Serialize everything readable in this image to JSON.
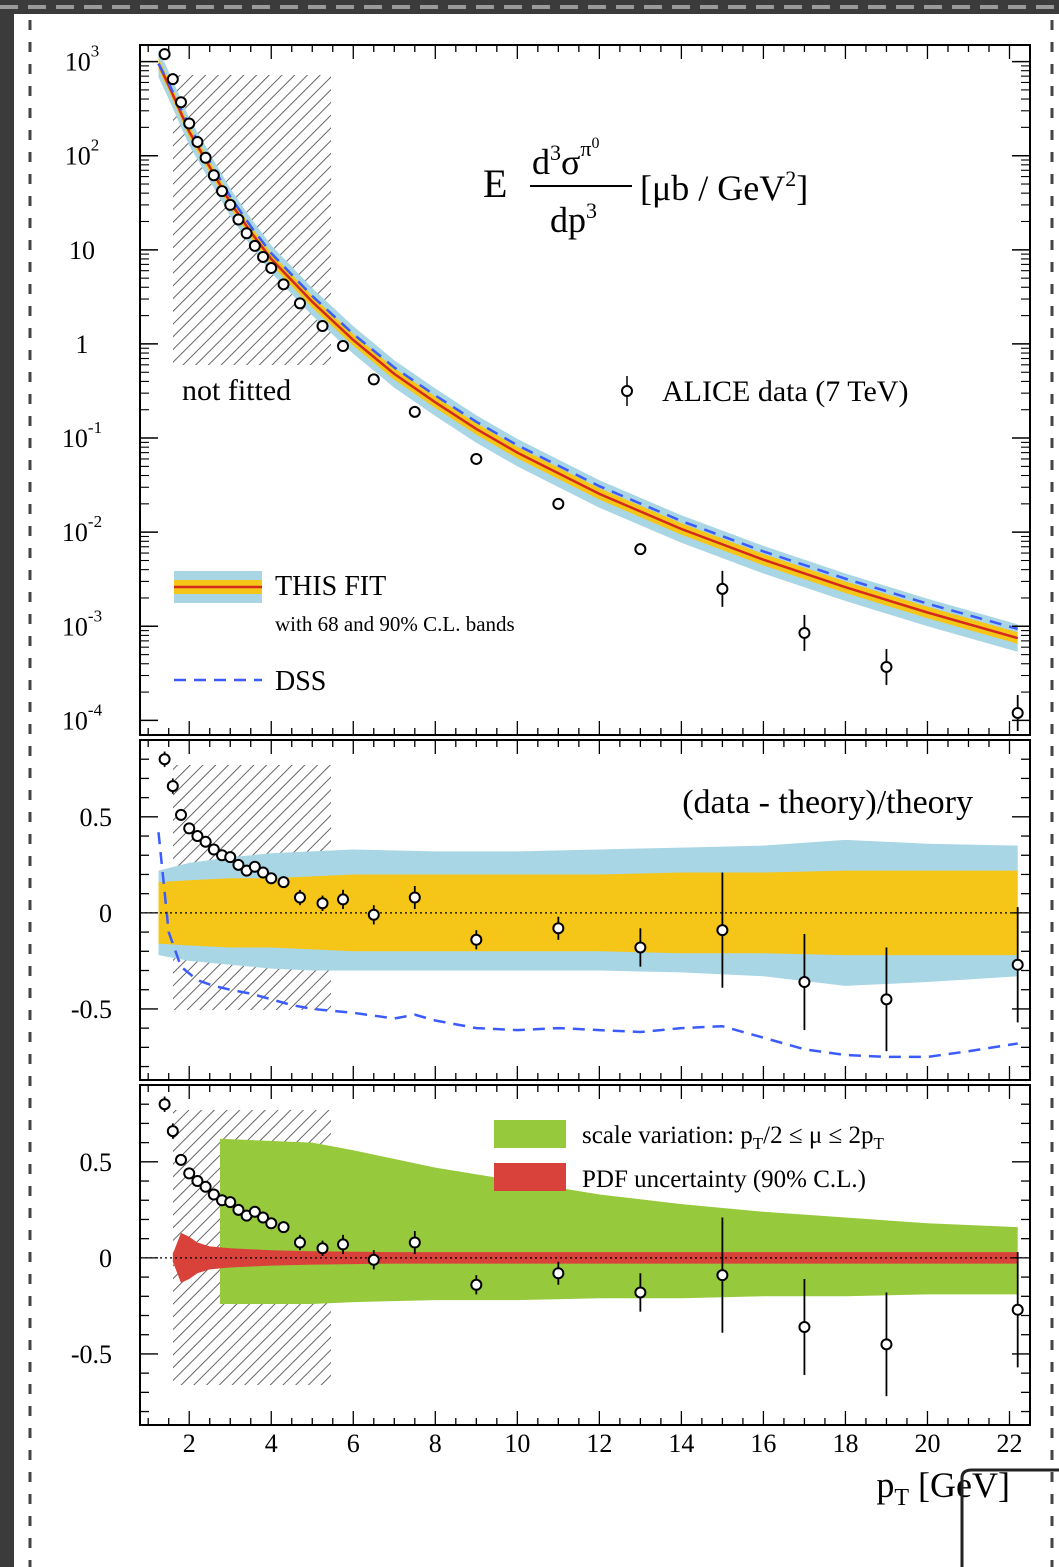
{
  "chart_data": [
    {
      "type": "scatter",
      "panel": "cross-section",
      "title_formula": {
        "E": "E",
        "num": "d",
        "num_sup": "3",
        "sigma": "σ",
        "pi_sup": "π",
        "pi_sup2": "0",
        "den": "dp",
        "den_sup": "3",
        "units": "[μb / GeV",
        "units_sup": "2",
        "units_close": "]"
      },
      "yscale": "log",
      "xlim": [
        0.8,
        22.5
      ],
      "ylim": [
        7e-05,
        1500
      ],
      "y_ticks": [
        {
          "value": 1000,
          "base": "10",
          "exp": "3"
        },
        {
          "value": 100,
          "base": "10",
          "exp": "2"
        },
        {
          "value": 10,
          "base": "10",
          "exp": ""
        },
        {
          "value": 1,
          "base": "1",
          "exp": ""
        },
        {
          "value": 0.1,
          "base": "10",
          "exp": "-1"
        },
        {
          "value": 0.01,
          "base": "10",
          "exp": "-2"
        },
        {
          "value": 0.001,
          "base": "10",
          "exp": "-3"
        },
        {
          "value": 0.0001,
          "base": "10",
          "exp": "-4"
        }
      ],
      "not_fitted_region": {
        "x": [
          1.0,
          5.0
        ],
        "label": "not fitted"
      },
      "data_label": "ALICE data (7 TeV)",
      "legend_fit": "THIS FIT",
      "legend_fit_sub": "with 68 and 90% C.L. bands",
      "legend_dss": "DSS",
      "data": [
        {
          "x": 1.4,
          "y": 1200
        },
        {
          "x": 1.6,
          "y": 650
        },
        {
          "x": 1.8,
          "y": 370
        },
        {
          "x": 2.0,
          "y": 220
        },
        {
          "x": 2.2,
          "y": 140
        },
        {
          "x": 2.4,
          "y": 95
        },
        {
          "x": 2.6,
          "y": 62
        },
        {
          "x": 2.8,
          "y": 42
        },
        {
          "x": 3.0,
          "y": 30
        },
        {
          "x": 3.2,
          "y": 21
        },
        {
          "x": 3.4,
          "y": 15
        },
        {
          "x": 3.6,
          "y": 11
        },
        {
          "x": 3.8,
          "y": 8.4
        },
        {
          "x": 4.0,
          "y": 6.4
        },
        {
          "x": 4.3,
          "y": 4.3
        },
        {
          "x": 4.7,
          "y": 2.7
        },
        {
          "x": 5.25,
          "y": 1.55
        },
        {
          "x": 5.75,
          "y": 0.95
        },
        {
          "x": 6.5,
          "y": 0.42
        },
        {
          "x": 7.5,
          "y": 0.19
        },
        {
          "x": 9.0,
          "y": 0.06
        },
        {
          "x": 11.0,
          "y": 0.02
        },
        {
          "x": 13.0,
          "y": 0.0066
        },
        {
          "x": 15.0,
          "y": 0.0025
        },
        {
          "x": 17.0,
          "y": 0.00085
        },
        {
          "x": 19.0,
          "y": 0.00037
        },
        {
          "x": 22.2,
          "y": 0.00012
        }
      ],
      "fit_curve": {
        "x": [
          1.25,
          1.5,
          2.0,
          2.5,
          3.0,
          3.5,
          4.0,
          5.0,
          6.0,
          7.0,
          8.0,
          9.0,
          10.0,
          12.0,
          14.0,
          16.0,
          18.0,
          20.0,
          22.2
        ],
        "y": [
          950,
          560,
          180,
          76,
          32,
          15.5,
          8.0,
          2.8,
          1.1,
          0.48,
          0.24,
          0.125,
          0.07,
          0.0255,
          0.0108,
          0.0051,
          0.0026,
          0.0014,
          0.00075
        ]
      },
      "band68_factor": 1.15,
      "band90_factor": 1.4,
      "dss_ratio": [
        {
          "x": 1.25,
          "r": 1.0
        },
        {
          "x": 2.0,
          "r": 1.15
        },
        {
          "x": 5.0,
          "r": 1.15
        },
        {
          "x": 10.0,
          "r": 1.2
        },
        {
          "x": 22.2,
          "r": 1.25
        }
      ]
    },
    {
      "type": "scatter",
      "panel": "ratio",
      "label": "(data -  theory)/theory",
      "ylim": [
        -0.87,
        0.9
      ],
      "y_ticks": [
        {
          "value": 0.5,
          "label": "0.5"
        },
        {
          "value": 0,
          "label": "0"
        },
        {
          "value": -0.5,
          "label": "-0.5"
        }
      ],
      "data": [
        {
          "x": 1.4,
          "y": 0.8,
          "err": 0.04
        },
        {
          "x": 1.6,
          "y": 0.66,
          "err": 0.04
        },
        {
          "x": 1.8,
          "y": 0.51,
          "err": 0.03
        },
        {
          "x": 2.0,
          "y": 0.44,
          "err": 0.03
        },
        {
          "x": 2.2,
          "y": 0.4,
          "err": 0.03
        },
        {
          "x": 2.4,
          "y": 0.37,
          "err": 0.03
        },
        {
          "x": 2.6,
          "y": 0.33,
          "err": 0.03
        },
        {
          "x": 2.8,
          "y": 0.3,
          "err": 0.03
        },
        {
          "x": 3.0,
          "y": 0.29,
          "err": 0.03
        },
        {
          "x": 3.2,
          "y": 0.25,
          "err": 0.03
        },
        {
          "x": 3.4,
          "y": 0.22,
          "err": 0.03
        },
        {
          "x": 3.6,
          "y": 0.24,
          "err": 0.03
        },
        {
          "x": 3.8,
          "y": 0.21,
          "err": 0.03
        },
        {
          "x": 4.0,
          "y": 0.18,
          "err": 0.03
        },
        {
          "x": 4.3,
          "y": 0.16,
          "err": 0.03
        },
        {
          "x": 4.7,
          "y": 0.08,
          "err": 0.04
        },
        {
          "x": 5.25,
          "y": 0.05,
          "err": 0.04
        },
        {
          "x": 5.75,
          "y": 0.07,
          "err": 0.05
        },
        {
          "x": 6.5,
          "y": -0.01,
          "err": 0.05
        },
        {
          "x": 7.5,
          "y": 0.08,
          "err": 0.06
        },
        {
          "x": 9.0,
          "y": -0.14,
          "err": 0.05
        },
        {
          "x": 11.0,
          "y": -0.08,
          "err": 0.06
        },
        {
          "x": 13.0,
          "y": -0.18,
          "err": 0.1
        },
        {
          "x": 15.0,
          "y": -0.09,
          "err": 0.3
        },
        {
          "x": 17.0,
          "y": -0.36,
          "err": 0.25
        },
        {
          "x": 19.0,
          "y": -0.45,
          "err": 0.27
        },
        {
          "x": 22.2,
          "y": -0.27,
          "err": 0.3
        }
      ],
      "band68": {
        "x": [
          1.25,
          2.0,
          3.0,
          4.0,
          5.0,
          6.0,
          8.0,
          10.0,
          12.0,
          14.0,
          16.0,
          18.0,
          20.0,
          22.2
        ],
        "up": [
          0.16,
          0.17,
          0.18,
          0.18,
          0.19,
          0.2,
          0.2,
          0.2,
          0.2,
          0.21,
          0.21,
          0.22,
          0.22,
          0.22
        ],
        "lo": [
          -0.16,
          -0.17,
          -0.18,
          -0.18,
          -0.19,
          -0.2,
          -0.2,
          -0.2,
          -0.2,
          -0.21,
          -0.21,
          -0.22,
          -0.22,
          -0.22
        ]
      },
      "band90": {
        "x": [
          1.25,
          2.0,
          3.0,
          4.0,
          5.0,
          6.0,
          8.0,
          10.0,
          12.0,
          14.0,
          16.0,
          18.0,
          20.0,
          22.2
        ],
        "up": [
          0.22,
          0.26,
          0.29,
          0.31,
          0.32,
          0.33,
          0.32,
          0.32,
          0.33,
          0.34,
          0.35,
          0.38,
          0.36,
          0.35
        ],
        "lo": [
          -0.22,
          -0.25,
          -0.27,
          -0.29,
          -0.3,
          -0.3,
          -0.3,
          -0.3,
          -0.3,
          -0.31,
          -0.33,
          -0.38,
          -0.36,
          -0.33
        ]
      },
      "dss": {
        "x": [
          1.25,
          1.5,
          1.8,
          2.2,
          2.6,
          3.0,
          3.5,
          4.0,
          4.5,
          5.0,
          6.0,
          7.0,
          7.5,
          8.0,
          9.0,
          10.0,
          11.0,
          12.0,
          13.0,
          14.0,
          15.0,
          16.0,
          17.0,
          18.0,
          19.0,
          20.0,
          21.0,
          22.2
        ],
        "y": [
          0.42,
          -0.1,
          -0.28,
          -0.35,
          -0.38,
          -0.4,
          -0.42,
          -0.45,
          -0.48,
          -0.5,
          -0.52,
          -0.55,
          -0.53,
          -0.56,
          -0.6,
          -0.61,
          -0.6,
          -0.61,
          -0.62,
          -0.6,
          -0.59,
          -0.65,
          -0.71,
          -0.74,
          -0.75,
          -0.75,
          -0.72,
          -0.68
        ]
      }
    },
    {
      "type": "scatter",
      "panel": "uncertainty",
      "ylim": [
        -0.87,
        0.9
      ],
      "y_ticks": [
        {
          "value": 0.5,
          "label": "0.5"
        },
        {
          "value": 0,
          "label": "0"
        },
        {
          "value": -0.5,
          "label": "-0.5"
        }
      ],
      "legend_scale": {
        "text": "scale variation: p",
        "sub": "T",
        "text2": "/2 ≤ μ ≤ 2p",
        "sub2": "T"
      },
      "legend_pdf": "PDF uncertainty (90% C.L.)",
      "scale_band": {
        "x": [
          2.75,
          5.0,
          6.0,
          8.0,
          10.0,
          12.0,
          14.0,
          16.0,
          18.0,
          20.0,
          22.2
        ],
        "up": [
          0.62,
          0.6,
          0.56,
          0.47,
          0.4,
          0.33,
          0.28,
          0.24,
          0.21,
          0.18,
          0.16
        ],
        "lo": [
          -0.24,
          -0.24,
          -0.23,
          -0.22,
          -0.22,
          -0.21,
          -0.21,
          -0.2,
          -0.2,
          -0.19,
          -0.19
        ]
      },
      "pdf_band": {
        "x": [
          1.6,
          1.8,
          2.0,
          2.2,
          2.5,
          3.0,
          4.0,
          5.0,
          7.0,
          10.0,
          15.0,
          22.2
        ],
        "up": [
          0.02,
          0.13,
          0.11,
          0.08,
          0.06,
          0.05,
          0.04,
          0.035,
          0.03,
          0.03,
          0.03,
          0.03
        ],
        "lo": [
          -0.02,
          -0.13,
          -0.11,
          -0.08,
          -0.06,
          -0.05,
          -0.04,
          -0.035,
          -0.03,
          -0.03,
          -0.03,
          -0.03
        ]
      },
      "data_same_as_ratio": true
    }
  ],
  "x_axis": {
    "label": "p",
    "label_sub": "T",
    "label_units": " [GeV]",
    "ticks": [
      2,
      4,
      6,
      8,
      10,
      12,
      14,
      16,
      18,
      20,
      22
    ]
  }
}
